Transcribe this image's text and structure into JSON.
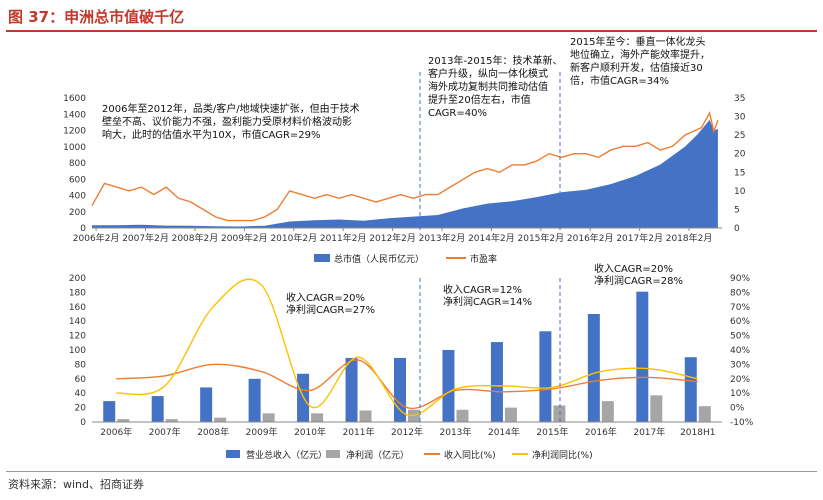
{
  "title": "图 37：申洲总市值破千亿",
  "source": "资料来源：wind、招商证券",
  "colors": {
    "bar_blue": "#4472c4",
    "bar_gray": "#a6a6a6",
    "line_orange": "#ed7d31",
    "line_yellow": "#ffc000",
    "title_red": "#c0392b"
  },
  "chart_data": [
    {
      "type": "area",
      "series": [
        {
          "name": "总市值（人民币亿元）",
          "axis": "left",
          "chart_kind": "area",
          "x": [
            "2006-01",
            "2006-07",
            "2007-01",
            "2007-07",
            "2008-01",
            "2008-07",
            "2009-01",
            "2009-07",
            "2010-01",
            "2010-07",
            "2011-01",
            "2011-07",
            "2012-01",
            "2012-07",
            "2013-01",
            "2013-07",
            "2014-01",
            "2014-07",
            "2015-01",
            "2015-07",
            "2016-01",
            "2016-07",
            "2017-01",
            "2017-07",
            "2018-01",
            "2018-04",
            "2018-07",
            "2018-08",
            "2018-09"
          ],
          "values": [
            35,
            35,
            40,
            30,
            28,
            22,
            18,
            28,
            80,
            95,
            105,
            90,
            120,
            140,
            160,
            240,
            300,
            330,
            380,
            440,
            470,
            540,
            640,
            780,
            1000,
            1150,
            1330,
            1200,
            1220
          ]
        },
        {
          "name": "市盈率",
          "axis": "right",
          "chart_kind": "line",
          "x": [
            "2006-01",
            "2006-04",
            "2006-07",
            "2006-10",
            "2007-01",
            "2007-04",
            "2007-07",
            "2007-10",
            "2008-01",
            "2008-04",
            "2008-07",
            "2008-10",
            "2009-01",
            "2009-04",
            "2009-07",
            "2009-10",
            "2010-01",
            "2010-04",
            "2010-07",
            "2010-10",
            "2011-01",
            "2011-04",
            "2011-07",
            "2011-10",
            "2012-01",
            "2012-04",
            "2012-07",
            "2012-10",
            "2013-01",
            "2013-04",
            "2013-07",
            "2013-10",
            "2014-01",
            "2014-04",
            "2014-07",
            "2014-10",
            "2015-01",
            "2015-04",
            "2015-07",
            "2015-10",
            "2016-01",
            "2016-04",
            "2016-07",
            "2016-10",
            "2017-01",
            "2017-04",
            "2017-07",
            "2017-10",
            "2018-01",
            "2018-03",
            "2018-05",
            "2018-07",
            "2018-08",
            "2018-09"
          ],
          "values": [
            6,
            12,
            11,
            10,
            11,
            9,
            11,
            8,
            7,
            5,
            3,
            2,
            2,
            2,
            3,
            5,
            10,
            9,
            8,
            9,
            8,
            9,
            8,
            7,
            8,
            9,
            8,
            9,
            9,
            11,
            13,
            15,
            16,
            15,
            17,
            17,
            18,
            20,
            19,
            20,
            20,
            19,
            21,
            22,
            22,
            23,
            21,
            22,
            25,
            26,
            27,
            31,
            26,
            29
          ]
        }
      ],
      "x_tick_labels": [
        "2006年2月",
        "2007年2月",
        "2008年2月",
        "2009年2月",
        "2010年2月",
        "2011年2月",
        "2012年2月",
        "2013年2月",
        "2014年2月",
        "2015年2月",
        "2016年2月",
        "2017年2月",
        "2018年2月"
      ],
      "y_left_ticks": [
        "0",
        "200",
        "400",
        "600",
        "800",
        "1000",
        "1200",
        "1400",
        "1600"
      ],
      "y_right_ticks": [
        "0",
        "5",
        "10",
        "15",
        "20",
        "25",
        "30",
        "35"
      ],
      "ylim_left": [
        0,
        1600
      ],
      "ylim_right": [
        0,
        35
      ],
      "legend": [
        "总市值（人民币亿元）",
        "市盈率"
      ],
      "legend_position": "bottom",
      "annotations": [
        {
          "lines": [
            "2006年至2012年，品类/客户/地域快速扩张，但由于技术",
            "壁垒不高、议价能力不强，盈利能力受原材料价格波动影",
            "响大，此时的估值水平为10X，市值CAGR=29%"
          ]
        },
        {
          "lines": [
            "2013年-2015年：技术革新、",
            "客户升级，纵向一体化模式",
            "海外成功复制共同推动估值",
            "提升至20倍左右，市值",
            "CAGR=40%"
          ]
        },
        {
          "lines": [
            "2015年至今：垂直一体化龙头",
            "地位确立，海外产能效率提升，",
            "新客户顺利开发，估值接近30",
            "倍，市值CAGR=34%"
          ]
        }
      ]
    },
    {
      "type": "bar",
      "categories": [
        "2006年",
        "2007年",
        "2008年",
        "2009年",
        "2010年",
        "2011年",
        "2012年",
        "2013年",
        "2014年",
        "2015年",
        "2016年",
        "2017年",
        "2018H1"
      ],
      "series": [
        {
          "name": "营业总收入（亿元）",
          "axis": "left",
          "chart_kind": "bar",
          "values": [
            29,
            36,
            48,
            60,
            67,
            89,
            89,
            100,
            111,
            126,
            150,
            181,
            90
          ]
        },
        {
          "name": "净利润（亿元）",
          "axis": "left",
          "chart_kind": "bar",
          "values": [
            4,
            4,
            6,
            12,
            12,
            16,
            17,
            17,
            20,
            23,
            29,
            37,
            22
          ]
        },
        {
          "name": "收入同比(%)",
          "axis": "right",
          "chart_kind": "line",
          "values": [
            20,
            22,
            30,
            25,
            12,
            33,
            0,
            12,
            11,
            13,
            19,
            21,
            18
          ]
        },
        {
          "name": "净利润同比(%)",
          "axis": "right",
          "chart_kind": "line",
          "values": [
            10,
            15,
            70,
            85,
            1,
            35,
            -5,
            13,
            15,
            14,
            25,
            27,
            20
          ]
        }
      ],
      "y_left_ticks": [
        "0",
        "20",
        "40",
        "60",
        "80",
        "100",
        "120",
        "140",
        "160",
        "180",
        "200"
      ],
      "y_right_ticks": [
        "-10%",
        "0%",
        "10%",
        "20%",
        "30%",
        "40%",
        "50%",
        "60%",
        "70%",
        "80%",
        "90%"
      ],
      "ylim_left": [
        0,
        200
      ],
      "ylim_right": [
        -10,
        90
      ],
      "legend": [
        "营业总收入（亿元）",
        "净利润（亿元）",
        "收入同比(%)",
        "净利润同比(%)"
      ],
      "legend_position": "bottom",
      "annotations": [
        {
          "lines": [
            "收入CAGR=20%",
            "净利润CAGR=27%"
          ]
        },
        {
          "lines": [
            "收入CAGR=12%",
            "净利润CAGR=14%"
          ]
        },
        {
          "lines": [
            "收入CAGR=20%",
            "净利润CAGR=28%"
          ]
        }
      ]
    }
  ]
}
